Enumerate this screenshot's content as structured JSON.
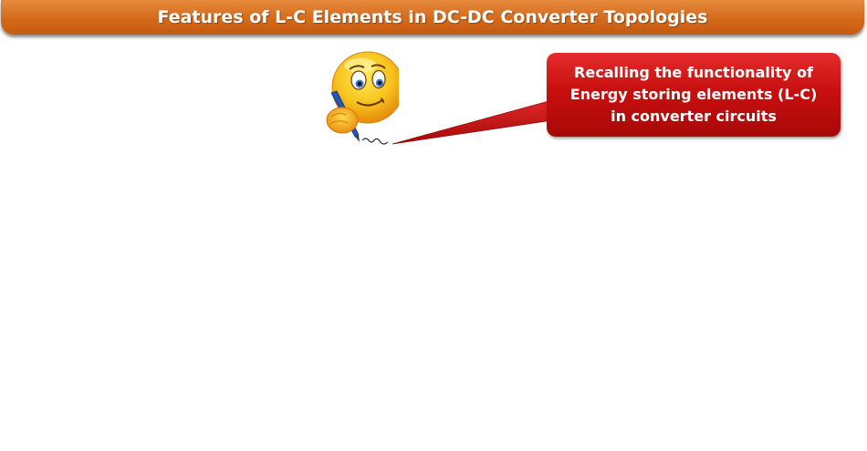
{
  "title": {
    "text": "Features of L-C Elements in DC-DC Converter Topologies",
    "bar_color": "#d46a1c"
  },
  "emoji": {
    "icon": "writing-smiley-face-icon"
  },
  "callout": {
    "lines": [
      "Recalling the functionality of",
      "Energy storing elements (L-C)",
      "in converter circuits"
    ],
    "color": "#c80f0f"
  }
}
